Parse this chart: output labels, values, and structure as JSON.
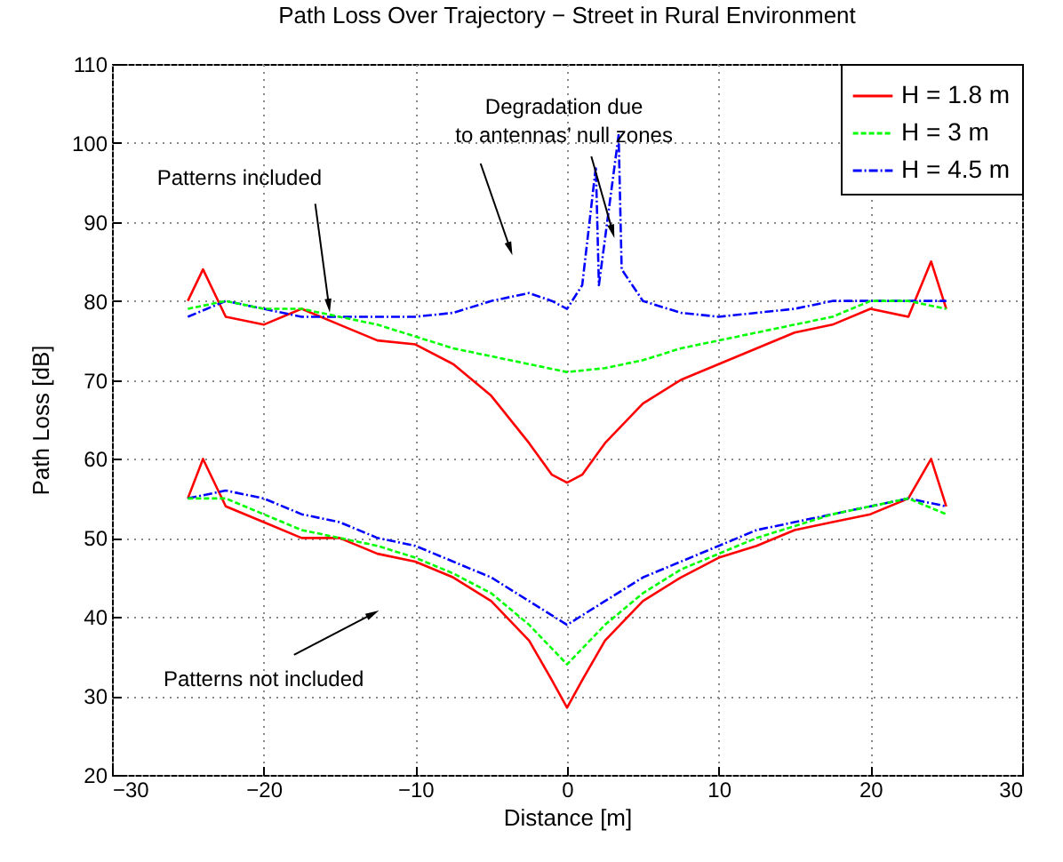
{
  "chart_data": {
    "type": "line",
    "title": "Path Loss Over Trajectory − Street in Rural Environment",
    "xlabel": "Distance [m]",
    "ylabel": "Path Loss [dB]",
    "xlim": [
      -30,
      30
    ],
    "xticks": [
      -30,
      -20,
      -10,
      0,
      10,
      20,
      30
    ],
    "ylim": [
      20,
      110
    ],
    "yticks": [
      20,
      30,
      40,
      50,
      60,
      70,
      80,
      90,
      100,
      110
    ],
    "grid": true,
    "legend": "top right",
    "annotations": [
      {
        "text": "Patterns included",
        "x": -15.7,
        "y": 79.4
      },
      {
        "text": "Degradation due\nto antennas’ null zones",
        "x": -3.75,
        "y": 86.6
      },
      {
        "text": "Patterns not included",
        "x": -12.8,
        "y": 40.4
      }
    ],
    "series": [
      {
        "name": "H = 1.8 m",
        "color": "#ff0000",
        "line_style": "solid",
        "x": [
          -25,
          -24,
          -22.5,
          -20,
          -17.5,
          -15,
          -12.5,
          -10,
          -7.5,
          -5,
          -2.5,
          -1,
          0,
          1,
          2.5,
          5,
          7.5,
          10,
          12.5,
          15,
          17.5,
          20,
          22.5,
          24,
          25
        ],
        "values": [
          80,
          84,
          78,
          77,
          79,
          77,
          75,
          74.5,
          72,
          68,
          62,
          58,
          57,
          58,
          62,
          67,
          70,
          72,
          74,
          76,
          77,
          79,
          78,
          85,
          79
        ]
      },
      {
        "name": "H = 3 m",
        "color": "#00ff00",
        "line_style": "dashed",
        "x": [
          -25,
          -22.5,
          -20,
          -17.5,
          -15,
          -12.5,
          -10,
          -7.5,
          -5,
          -2.5,
          0,
          2.5,
          5,
          7.5,
          10,
          12.5,
          15,
          17.5,
          20,
          22.5,
          25
        ],
        "values": [
          79,
          80,
          79,
          79,
          78,
          77,
          75.5,
          74,
          73,
          72,
          71,
          71.5,
          72.5,
          74,
          75,
          76,
          77,
          78,
          80,
          80,
          79
        ]
      },
      {
        "name": "H = 4.5 m",
        "color": "#0000ff",
        "line_style": "dashdot",
        "x": [
          -25,
          -22.5,
          -20,
          -17.5,
          -15,
          -12.5,
          -10,
          -7.5,
          -5,
          -2.5,
          -1,
          0,
          1,
          1.9,
          2.1,
          3.4,
          3.6,
          5,
          7.5,
          10,
          12.5,
          15,
          17.5,
          20,
          22.5,
          25
        ],
        "values": [
          78,
          80,
          79,
          78,
          78,
          78,
          78,
          78.5,
          80,
          81,
          80,
          79,
          82,
          97,
          82,
          101,
          84,
          80,
          78.5,
          78,
          78.5,
          79,
          80,
          80,
          80,
          80
        ]
      },
      {
        "color": "#ff0000",
        "line_style": "solid",
        "x": [
          -25,
          -24,
          -22.5,
          -20,
          -17.5,
          -15,
          -12.5,
          -10,
          -7.5,
          -5,
          -2.5,
          -1,
          0,
          1,
          2.5,
          5,
          7.5,
          10,
          12.5,
          15,
          17.5,
          20,
          22.5,
          24,
          25
        ],
        "values": [
          55,
          60,
          54,
          52,
          50,
          50,
          48,
          47,
          45,
          42,
          37,
          32,
          28.5,
          32,
          37,
          42,
          45,
          47.5,
          49,
          51,
          52,
          53,
          55,
          60,
          54
        ]
      },
      {
        "color": "#00ff00",
        "line_style": "dashed",
        "x": [
          -25,
          -22.5,
          -20,
          -17.5,
          -15,
          -12.5,
          -10,
          -7.5,
          -5,
          -2.5,
          0,
          2.5,
          5,
          7.5,
          10,
          12.5,
          15,
          17.5,
          20,
          22.5,
          25
        ],
        "values": [
          55,
          55,
          53,
          51,
          50,
          49,
          47.5,
          45.5,
          43,
          39,
          34,
          39,
          43,
          46,
          48,
          50,
          51.5,
          53,
          54,
          55,
          53
        ]
      },
      {
        "color": "#0000ff",
        "line_style": "dashdot",
        "x": [
          -25,
          -22.5,
          -20,
          -17.5,
          -15,
          -12.5,
          -10,
          -7.5,
          -5,
          -2.5,
          0,
          2.5,
          5,
          7.5,
          10,
          12.5,
          15,
          17.5,
          20,
          22.5,
          25
        ],
        "values": [
          55,
          56,
          55,
          53,
          52,
          50,
          49,
          47,
          45,
          42,
          39,
          42,
          45,
          47,
          49,
          51,
          52,
          53,
          54,
          55,
          54
        ]
      }
    ]
  }
}
